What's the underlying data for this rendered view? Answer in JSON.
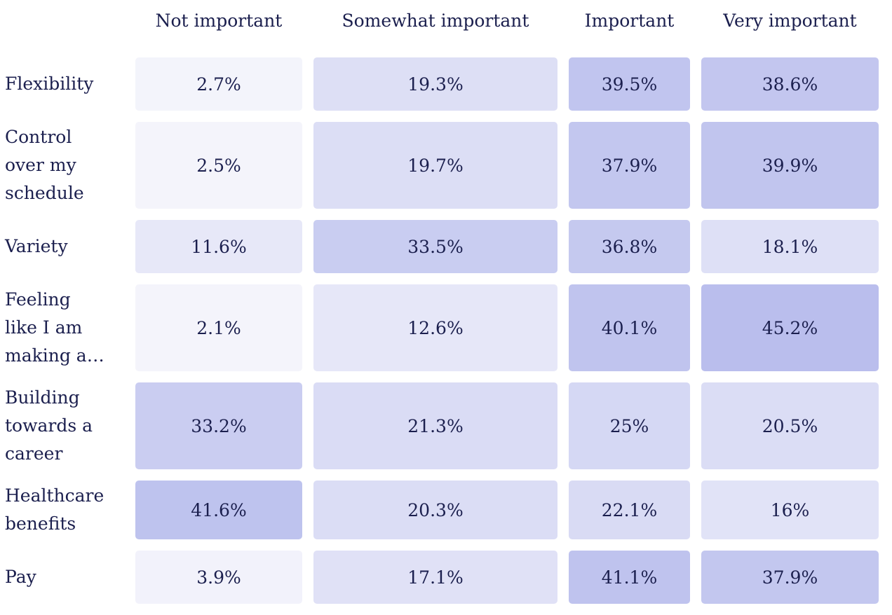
{
  "chart_data": {
    "type": "heatmap",
    "title": "",
    "columns": [
      "Not important",
      "Somewhat important",
      "Important",
      "Very important"
    ],
    "rows": [
      {
        "label": "Flexibility",
        "values": [
          2.7,
          19.3,
          39.5,
          38.6
        ],
        "display": [
          "2.7%",
          "19.3%",
          "39.5%",
          "38.6%"
        ]
      },
      {
        "label": "Control over my schedule",
        "values": [
          2.5,
          19.7,
          37.9,
          39.9
        ],
        "display": [
          "2.5%",
          "19.7%",
          "37.9%",
          "39.9%"
        ]
      },
      {
        "label": "Variety",
        "values": [
          11.6,
          33.5,
          36.8,
          18.1
        ],
        "display": [
          "11.6%",
          "33.5%",
          "36.8%",
          "18.1%"
        ]
      },
      {
        "label": "Feeling like I am making a…",
        "values": [
          2.1,
          12.6,
          40.1,
          45.2
        ],
        "display": [
          "2.1%",
          "12.6%",
          "40.1%",
          "45.2%"
        ]
      },
      {
        "label": "Building towards a career",
        "values": [
          33.2,
          21.3,
          25,
          20.5
        ],
        "display": [
          "33.2%",
          "21.3%",
          "25%",
          "20.5%"
        ]
      },
      {
        "label": "Healthcare benefits",
        "values": [
          41.6,
          20.3,
          22.1,
          16
        ],
        "display": [
          "41.6%",
          "20.3%",
          "22.1%",
          "16%"
        ]
      },
      {
        "label": "Pay",
        "values": [
          3.9,
          17.1,
          41.1,
          37.9
        ],
        "display": [
          "3.9%",
          "17.1%",
          "41.1%",
          "37.9%"
        ]
      }
    ],
    "value_unit": "%",
    "color_scale": {
      "low": "#f7f7fc",
      "high": "#b3b8eb",
      "min": 0,
      "max": 50
    }
  }
}
